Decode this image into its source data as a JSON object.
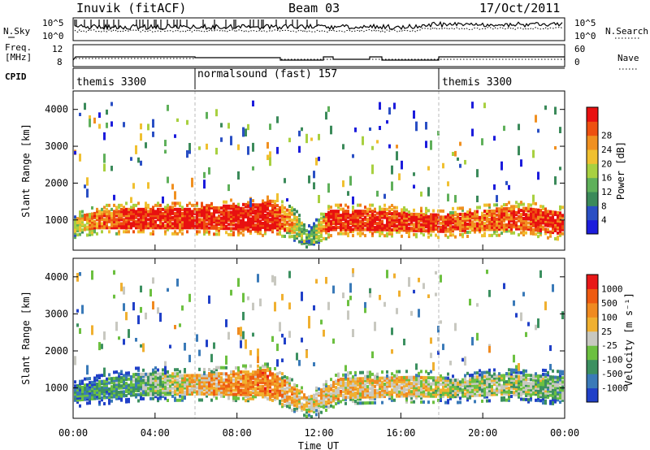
{
  "header": {
    "station": "Inuvik (fitACF)",
    "beam": "Beam 03",
    "date": "17/Oct/2011"
  },
  "summary_panels": {
    "nsky": {
      "label": "N.Sky",
      "y_ticks": [
        "10^5",
        "10^0"
      ],
      "right_label": "N.Search",
      "right_ticks": [
        "10^5",
        "10^0"
      ]
    },
    "freq": {
      "label_line1": "Freq.",
      "label_line2": "[MHz]",
      "y_ticks": [
        "12",
        "8"
      ],
      "right_label": "Nave",
      "right_ticks": [
        "60",
        "0"
      ]
    },
    "cpid": {
      "label": "CPID",
      "modes": [
        {
          "name": "themis 3300",
          "start_hour": 0,
          "end_hour": 6
        },
        {
          "name": "normalsound (fast) 157",
          "start_hour": 6,
          "end_hour": 18
        },
        {
          "name": "themis 3300",
          "start_hour": 18,
          "end_hour": 24
        }
      ]
    }
  },
  "chart_data": [
    {
      "type": "heatmap",
      "title": "Power",
      "ylabel": "Slant Range [km]",
      "xlabel": "",
      "x_range_hours": [
        0,
        24
      ],
      "ylim": [
        180,
        4500
      ],
      "y_ticks": [
        1000,
        2000,
        3000,
        4000
      ],
      "colorbar": {
        "label": "Power [dB]",
        "ticks": [
          "4",
          "8",
          "12",
          "16",
          "20",
          "24",
          "28"
        ],
        "colors": [
          "#1c1cdc",
          "#2a4fc4",
          "#3b8a5a",
          "#5fb05a",
          "#a8d040",
          "#f0c030",
          "#f09020",
          "#ee5010",
          "#e81010"
        ]
      },
      "main_band": [
        {
          "hour": 0.0,
          "center_km": 850,
          "width_km": 350,
          "level": 0.55
        },
        {
          "hour": 1.0,
          "center_km": 1000,
          "width_km": 450,
          "level": 0.75
        },
        {
          "hour": 3.0,
          "center_km": 1050,
          "width_km": 550,
          "level": 0.92
        },
        {
          "hour": 6.0,
          "center_km": 1050,
          "width_km": 550,
          "level": 0.92
        },
        {
          "hour": 9.5,
          "center_km": 1100,
          "width_km": 750,
          "level": 0.97
        },
        {
          "hour": 10.5,
          "center_km": 1000,
          "width_km": 600,
          "level": 0.7
        },
        {
          "hour": 11.5,
          "center_km": 500,
          "width_km": 400,
          "level": 0.3
        },
        {
          "hour": 12.5,
          "center_km": 1000,
          "width_km": 550,
          "level": 0.92
        },
        {
          "hour": 15.0,
          "center_km": 1000,
          "width_km": 550,
          "level": 0.9
        },
        {
          "hour": 18.0,
          "center_km": 900,
          "width_km": 450,
          "level": 0.85
        },
        {
          "hour": 20.0,
          "center_km": 1000,
          "width_km": 550,
          "level": 0.8
        },
        {
          "hour": 22.0,
          "center_km": 1050,
          "width_km": 600,
          "level": 0.85
        },
        {
          "hour": 24.0,
          "center_km": 900,
          "width_km": 600,
          "level": 0.88
        }
      ]
    },
    {
      "type": "heatmap",
      "title": "Velocity",
      "ylabel": "Slant Range [km]",
      "xlabel": "Time UT",
      "x_range_hours": [
        0,
        24
      ],
      "x_tick_labels": [
        "00:00",
        "04:00",
        "08:00",
        "12:00",
        "16:00",
        "20:00",
        "00:00"
      ],
      "ylim": [
        180,
        4500
      ],
      "y_ticks": [
        1000,
        2000,
        3000,
        4000
      ],
      "colorbar": {
        "label": "Velocity [m s⁻¹]",
        "ticks": [
          "1000",
          "500",
          "100",
          "25",
          "-25",
          "-100",
          "-500",
          "-1000"
        ],
        "colors": [
          "#2040c8",
          "#3a7ab8",
          "#3c9060",
          "#6cc040",
          "#c8c8c0",
          "#f0b030",
          "#f08a20",
          "#ee5a10",
          "#e81818"
        ]
      },
      "main_band": [
        {
          "hour": 0.0,
          "center_km": 850,
          "width_km": 400,
          "level": 0.25
        },
        {
          "hour": 3.0,
          "center_km": 1100,
          "width_km": 600,
          "level": 0.3
        },
        {
          "hour": 6.0,
          "center_km": 1100,
          "width_km": 550,
          "level": 0.6
        },
        {
          "hour": 9.5,
          "center_km": 1150,
          "width_km": 700,
          "level": 0.75
        },
        {
          "hour": 11.5,
          "center_km": 550,
          "width_km": 400,
          "level": 0.55
        },
        {
          "hour": 13.0,
          "center_km": 1000,
          "width_km": 550,
          "level": 0.62
        },
        {
          "hour": 16.5,
          "center_km": 1050,
          "width_km": 550,
          "level": 0.55
        },
        {
          "hour": 18.5,
          "center_km": 1000,
          "width_km": 500,
          "level": 0.45
        },
        {
          "hour": 21.0,
          "center_km": 1100,
          "width_km": 550,
          "level": 0.45
        },
        {
          "hour": 24.0,
          "center_km": 1000,
          "width_km": 600,
          "level": 0.35
        }
      ]
    }
  ]
}
